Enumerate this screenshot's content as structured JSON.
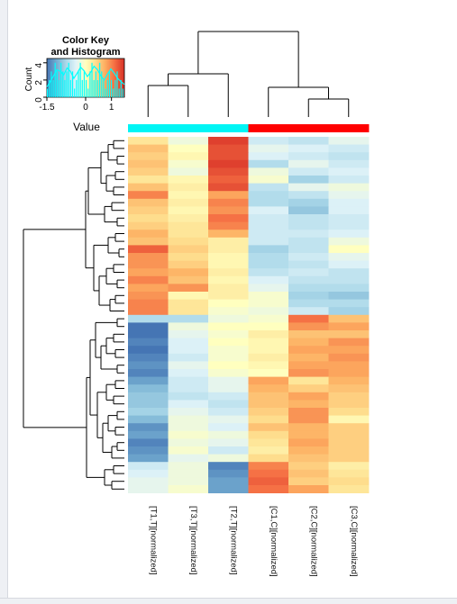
{
  "chart_data": {
    "type": "heatmap",
    "color_key": {
      "title_line1": "Color Key",
      "title_line2": "and Histogram",
      "ylabel": "Count",
      "xlabel": "Value",
      "x_ticks": [
        "-1.5",
        "0",
        "1"
      ],
      "y_ticks": [
        "0",
        "2",
        "4"
      ]
    },
    "columns": [
      {
        "label": "[T1,T][normalized]",
        "group": "T"
      },
      {
        "label": "[T3,T][normalized]",
        "group": "T"
      },
      {
        "label": "[T2,T][normalized]",
        "group": "T"
      },
      {
        "label": "[C1,C][normalized]",
        "group": "C"
      },
      {
        "label": "[C2,C][normalized]",
        "group": "C"
      },
      {
        "label": "[C3,C][normalized]",
        "group": "C"
      }
    ],
    "group_colors": {
      "T": "#00f5f5",
      "C": "#ff0000"
    },
    "values": [
      [
        0.3,
        -0.2,
        1.4,
        -0.5,
        -0.6,
        -0.3
      ],
      [
        0.6,
        0.0,
        1.3,
        -0.3,
        -0.4,
        -0.5
      ],
      [
        0.5,
        0.1,
        1.3,
        -0.4,
        -0.5,
        -0.6
      ],
      [
        0.6,
        -0.1,
        1.4,
        -0.7,
        -0.3,
        -0.5
      ],
      [
        0.5,
        -0.2,
        1.3,
        -0.2,
        -0.5,
        -0.4
      ],
      [
        0.3,
        0.1,
        1.2,
        -0.1,
        -0.8,
        -0.5
      ],
      [
        0.6,
        0.2,
        1.3,
        -0.6,
        -0.3,
        -0.2
      ],
      [
        1.0,
        0.1,
        0.8,
        -0.7,
        -0.6,
        -0.3
      ],
      [
        0.6,
        0.2,
        1.0,
        -0.7,
        -0.8,
        -0.4
      ],
      [
        0.5,
        0.1,
        0.9,
        -0.4,
        -0.9,
        -0.4
      ],
      [
        0.4,
        0.2,
        1.1,
        -0.5,
        -0.6,
        -0.5
      ],
      [
        0.5,
        0.3,
        1.0,
        -0.5,
        -0.6,
        -0.5
      ],
      [
        0.7,
        0.3,
        0.7,
        -0.5,
        -0.5,
        -0.4
      ],
      [
        0.6,
        0.4,
        0.2,
        -0.5,
        -0.6,
        -0.2
      ],
      [
        1.2,
        0.5,
        0.2,
        -0.8,
        -0.6,
        0.0
      ],
      [
        0.9,
        0.4,
        0.1,
        -0.7,
        -0.5,
        -0.3
      ],
      [
        0.9,
        0.5,
        0.1,
        -0.7,
        -0.6,
        -0.4
      ],
      [
        0.8,
        0.7,
        0.2,
        -0.6,
        -0.5,
        -0.6
      ],
      [
        1.0,
        0.6,
        0.1,
        -0.4,
        -0.6,
        -0.6
      ],
      [
        0.8,
        0.9,
        0.2,
        -0.3,
        -0.7,
        -0.7
      ],
      [
        0.9,
        0.1,
        0.2,
        -0.1,
        -0.8,
        -0.9
      ],
      [
        1.0,
        0.3,
        0.0,
        -0.1,
        -0.7,
        -0.7
      ],
      [
        1.0,
        0.3,
        -0.1,
        -0.2,
        -0.5,
        -0.8
      ],
      [
        -0.7,
        -0.7,
        -0.2,
        -0.1,
        1.1,
        0.6
      ],
      [
        -1.5,
        -0.2,
        0.0,
        0.0,
        0.9,
        0.8
      ],
      [
        -1.5,
        -0.3,
        -0.1,
        0.2,
        0.6,
        0.6
      ],
      [
        -1.4,
        -0.4,
        0.0,
        0.1,
        0.7,
        0.9
      ],
      [
        -1.5,
        -0.4,
        -0.1,
        0.1,
        0.8,
        0.8
      ],
      [
        -1.4,
        -0.5,
        -0.1,
        0.2,
        0.7,
        0.9
      ],
      [
        -1.3,
        -0.3,
        0.0,
        0.1,
        0.8,
        0.8
      ],
      [
        -1.4,
        -0.4,
        -0.1,
        0.0,
        0.9,
        0.8
      ],
      [
        -1.2,
        -0.5,
        -0.3,
        0.8,
        0.3,
        0.7
      ],
      [
        -1.0,
        -0.5,
        -0.3,
        0.7,
        0.5,
        0.6
      ],
      [
        -0.9,
        -0.6,
        -0.5,
        0.6,
        0.8,
        0.5
      ],
      [
        -0.9,
        -0.4,
        -0.6,
        0.6,
        0.7,
        0.5
      ],
      [
        -0.8,
        -0.3,
        -0.5,
        0.5,
        0.9,
        0.4
      ],
      [
        -1.0,
        -0.2,
        -0.3,
        0.4,
        0.9,
        0.1
      ],
      [
        -1.3,
        -0.2,
        -0.4,
        0.6,
        0.7,
        0.5
      ],
      [
        -1.2,
        -0.1,
        -0.2,
        0.4,
        0.7,
        0.5
      ],
      [
        -1.4,
        -0.2,
        -0.3,
        0.3,
        0.8,
        0.5
      ],
      [
        -1.3,
        -0.1,
        -0.5,
        0.2,
        0.7,
        0.5
      ],
      [
        -1.2,
        -0.3,
        -0.2,
        0.4,
        0.6,
        0.5
      ],
      [
        -0.5,
        -0.2,
        -1.4,
        1.0,
        0.5,
        0.2
      ],
      [
        -0.4,
        -0.2,
        -1.3,
        1.1,
        0.6,
        0.3
      ],
      [
        -0.3,
        -0.2,
        -1.2,
        1.2,
        0.5,
        0.4
      ],
      [
        -0.3,
        -0.1,
        -1.2,
        1.1,
        0.8,
        0.3
      ]
    ],
    "color_scale": {
      "min": -1.5,
      "max": 1.5,
      "stops": [
        "#4575b4",
        "#74add1",
        "#abd9e9",
        "#e0f3f8",
        "#ffffbf",
        "#fee090",
        "#fdae61",
        "#f46d43",
        "#d73027"
      ]
    },
    "histogram_counts": [
      1,
      2,
      3,
      2,
      4,
      3,
      2,
      4,
      3,
      2,
      3,
      4,
      2,
      3,
      1,
      2,
      3,
      4,
      2,
      3,
      2,
      1,
      3,
      4,
      2,
      3,
      2,
      4,
      3,
      2,
      1,
      2,
      3,
      2,
      1,
      2,
      3,
      1,
      2,
      1
    ],
    "histogram_line": [
      1.2,
      1.8,
      2.5,
      3.2,
      3.0,
      2.6,
      3.4,
      3.0,
      2.2,
      2.8,
      3.5,
      3.1,
      2.4,
      2.9,
      3.6,
      3.2,
      2.5,
      2.0,
      2.7,
      3.3,
      2.8,
      2.2,
      1.8,
      1.5
    ]
  }
}
